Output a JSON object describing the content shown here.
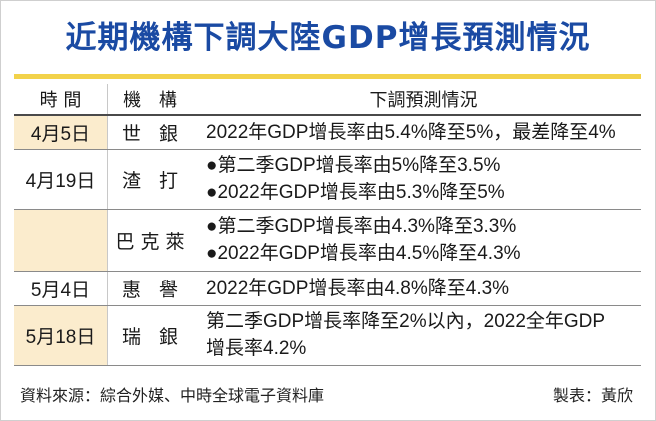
{
  "title": "近期機構下調大陸GDP增長預測情況",
  "headers": {
    "time": "時 間",
    "org": "機 構",
    "desc": "下調預測情況"
  },
  "rows": [
    {
      "time": "4月5日",
      "org": "世 銀",
      "lines": [
        "2022年GDP增長率由5.4%降至5%，最差降至4%"
      ]
    },
    {
      "time": "4月19日",
      "org": "渣 打",
      "lines": [
        "●第二季GDP增長率由5%降至3.5%",
        "●2022年GDP增長率由5.3%降至5%"
      ]
    },
    {
      "time": "",
      "org": "巴克萊",
      "lines": [
        "●第二季GDP增長率由4.3%降至3.3%",
        "●2022年GDP增長率由4.5%降至4.3%"
      ]
    },
    {
      "time": "5月4日",
      "org": "惠 譽",
      "lines": [
        "2022年GDP增長率由4.8%降至4.3%"
      ]
    },
    {
      "time": "5月18日",
      "org": "瑞 銀",
      "lines": [
        "第二季GDP增長率降至2%以內，2022全年GDP",
        "增長率4.2%"
      ]
    }
  ],
  "footer": {
    "source": "資料來源：綜合外媒、中時全球電子資料庫",
    "maker": "製表：黃欣"
  },
  "colors": {
    "title": "#1a4aa3",
    "accent_rule": "#f2d24a",
    "row_shade": "#fbeccd"
  }
}
